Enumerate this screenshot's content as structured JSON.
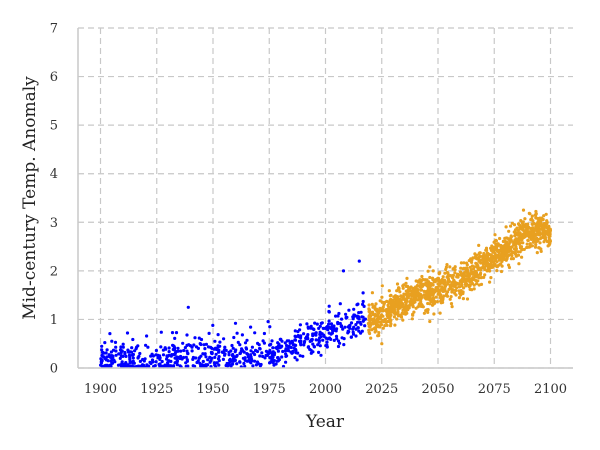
{
  "chart_data": {
    "type": "scatter",
    "title": "",
    "xlabel": "Year",
    "ylabel": "Mid-century Temp. Anomaly",
    "xlim": [
      1890,
      2110
    ],
    "ylim": [
      0,
      7
    ],
    "xticks": [
      1900,
      1925,
      1950,
      1975,
      2000,
      2025,
      2050,
      2075,
      2100
    ],
    "yticks": [
      0,
      1,
      2,
      3,
      4,
      5,
      6,
      7
    ],
    "grid": true,
    "legend": "none",
    "series": [
      {
        "color": "#0000ff",
        "x_range": [
          1900,
          2018
        ],
        "trend": [
          [
            1900,
            0.15
          ],
          [
            1950,
            0.22
          ],
          [
            1980,
            0.35
          ],
          [
            2000,
            0.7
          ],
          [
            2018,
            1.05
          ]
        ],
        "noise_sd": 0.18,
        "n_points": 700,
        "highlights": [
          [
            1939,
            1.25
          ],
          [
            2015,
            2.2
          ],
          [
            2008,
            2.0
          ],
          [
            1912,
            0.72
          ],
          [
            1960,
            0.92
          ]
        ]
      },
      {
        "color": "#e8a020",
        "x_range": [
          2019,
          2100
        ],
        "trend": [
          [
            2019,
            0.95
          ],
          [
            2040,
            1.5
          ],
          [
            2060,
            1.8
          ],
          [
            2080,
            2.45
          ],
          [
            2090,
            2.8
          ],
          [
            2100,
            2.8
          ]
        ],
        "noise_sd": 0.17,
        "n_points": 1300,
        "highlights": [
          [
            2025,
            0.5
          ],
          [
            2088,
            3.25
          ],
          [
            2084,
            2.95
          ]
        ]
      }
    ]
  }
}
